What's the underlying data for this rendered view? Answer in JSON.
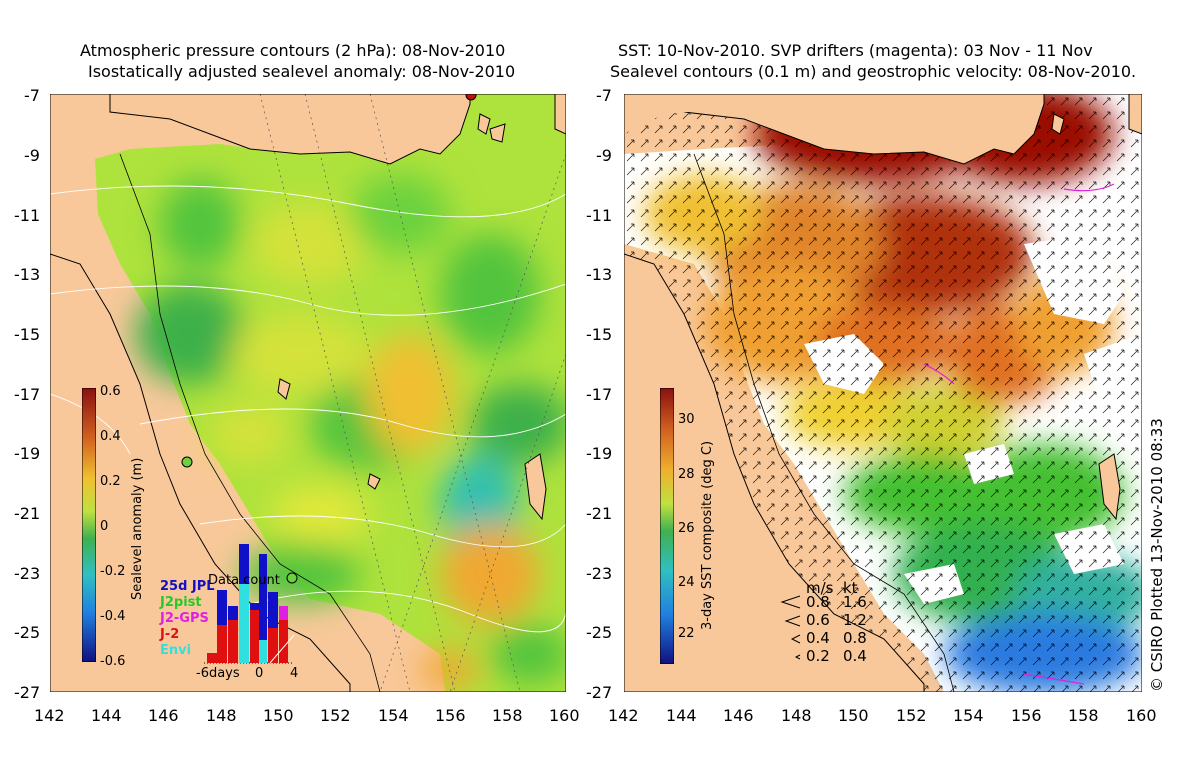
{
  "left": {
    "title1": "Atmospheric pressure contours (2 hPa): 08-Nov-2010",
    "title2": "Isostatically adjusted sealevel anomaly: 08-Nov-2010",
    "colorbar_label": "Sealevel anomaly (m)",
    "colorbar_ticks": [
      "0.6",
      "0.4",
      "0.2",
      "0",
      "-0.2",
      "-0.4",
      "-0.6"
    ],
    "inset": {
      "title": "Data count",
      "legend": [
        {
          "label": "25d JPL",
          "color": "#1010c8"
        },
        {
          "label": "J2pist",
          "color": "#28c828"
        },
        {
          "label": "J2-GPS",
          "color": "#e020e0"
        },
        {
          "label": "J-2",
          "color": "#e01010"
        },
        {
          "label": "Envi",
          "color": "#30e0e0"
        }
      ],
      "axis_labels": [
        "-6days",
        "0",
        "4"
      ]
    }
  },
  "right": {
    "title1": "SST: 10-Nov-2010. SVP drifters (magenta): 03 Nov - 11 Nov",
    "title2": "Sealevel contours (0.1 m) and geostrophic velocity: 08-Nov-2010.",
    "colorbar_label": "3-day SST composite (deg C)",
    "colorbar_ticks": [
      "30",
      "28",
      "26",
      "24",
      "22"
    ],
    "vector_key": {
      "header_ms": "m/s",
      "header_kt": "kt",
      "rows": [
        {
          "ms": "0.8",
          "kt": "1.6"
        },
        {
          "ms": "0.6",
          "kt": "1.2"
        },
        {
          "ms": "0.4",
          "kt": "0.8"
        },
        {
          "ms": "0.2",
          "kt": "0.4"
        }
      ]
    }
  },
  "y_ticks": [
    "-7",
    "-9",
    "-11",
    "-13",
    "-15",
    "-17",
    "-19",
    "-21",
    "-23",
    "-25",
    "-27"
  ],
  "x_ticks": [
    "142",
    "144",
    "146",
    "148",
    "150",
    "152",
    "154",
    "156",
    "158",
    "160"
  ],
  "footer": "© CSIRO Plotted 13-Nov-2010 08:33",
  "colors": {
    "land": "#f9c89a",
    "sla_green": "#6cd23c",
    "sla_yellow": "#d8e63a",
    "sla_orange": "#f0b830",
    "sst_dark_red": "#9a0a00",
    "sst_orange": "#e0842a",
    "sst_green": "#44c030",
    "sst_blue": "#2a7ae0"
  }
}
